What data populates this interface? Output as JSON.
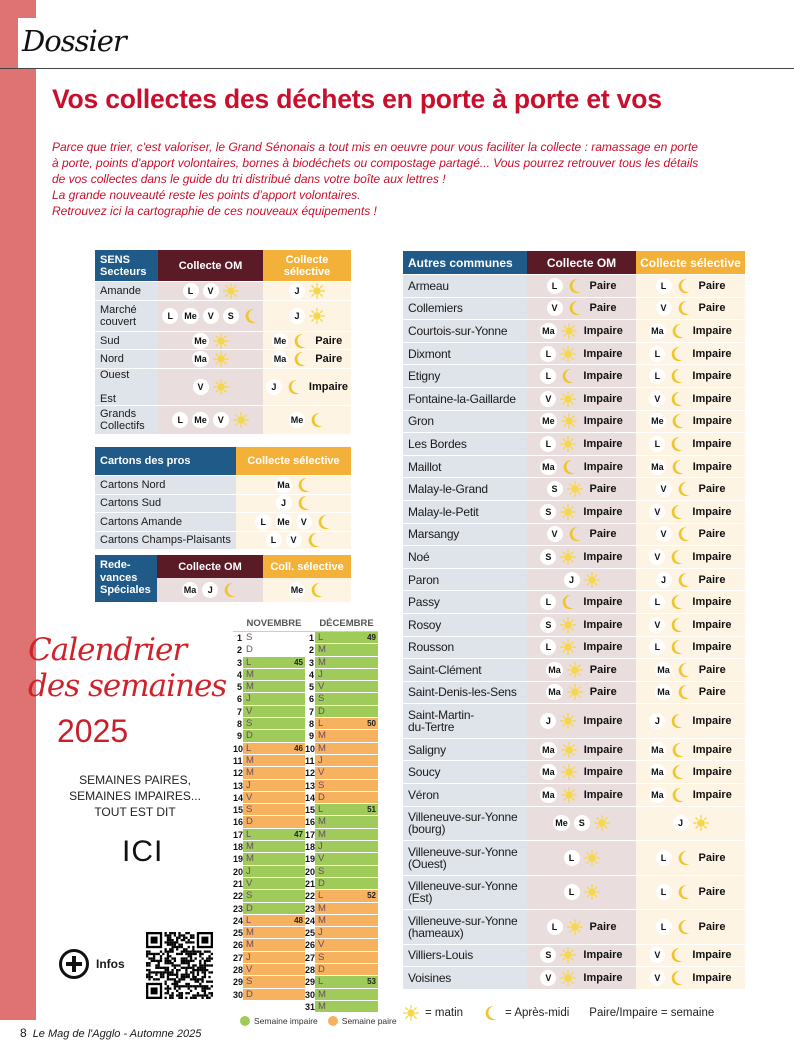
{
  "header": {
    "section": "Dossier",
    "title": "Vos collectes des déchets en porte à porte et vos"
  },
  "intro": [
    " Parce que trier, c'est valoriser, le Grand Sénonais a tout mis en oeuvre pour vous faciliter la collecte : ramassage en porte",
    "à porte, points d'apport volontaires, bornes à biodéchets ou compostage partagé... Vous pourrez retrouver tous les détails",
    "de vos collectes dans le guide du tri distribué dans votre boîte aux lettres !",
    "La grande nouveauté reste les points d'apport volontaires.",
    "Retrouvez ici la cartographie de ces nouveaux équipements !"
  ],
  "colors": {
    "accent": "#c8102e",
    "blue": "#1f5a88",
    "maroon": "#5a1b26",
    "orange": "#f4b13a",
    "semaine_impaire": "#9fcb5b",
    "semaine_paire": "#f6b25e",
    "sun": "#f6d64a",
    "moon": "#f0c52c"
  },
  "sens": {
    "h1": "SENS\nSecteurs",
    "h2": "Collecte OM",
    "h3": "Collecte\nsélective",
    "rows": [
      {
        "label": "Amande",
        "om": {
          "d": [
            "L",
            "V"
          ],
          "t": "sun"
        },
        "sel": {
          "d": [
            "J"
          ],
          "t": "sun"
        }
      },
      {
        "label": "Marché\ncouvert",
        "om": {
          "d": [
            "L",
            "Me",
            "V",
            "S"
          ],
          "t": "moon"
        },
        "sel": {
          "d": [
            "J"
          ],
          "t": "sun"
        }
      },
      {
        "label": "Sud",
        "om": {
          "d": [
            "Me"
          ],
          "t": "sun"
        },
        "sel": {
          "d": [
            "Me"
          ],
          "t": "moon",
          "w": "Paire"
        }
      },
      {
        "label": "Nord",
        "om": {
          "d": [
            "Ma"
          ],
          "t": "sun"
        },
        "sel": {
          "d": [
            "Ma"
          ],
          "t": "moon",
          "w": "Paire"
        }
      },
      {
        "label": "Ouest\n\nEst",
        "om": {
          "d": [
            "V"
          ],
          "t": "sun"
        },
        "sel": {
          "d": [
            "J"
          ],
          "t": "moon",
          "w": "Impaire"
        }
      },
      {
        "label": "Grands\nCollectifs",
        "om": {
          "d": [
            "L",
            "Me",
            "V"
          ],
          "t": "sun"
        },
        "sel": {
          "d": [
            "Me"
          ],
          "t": "moon"
        }
      }
    ]
  },
  "cartons": {
    "h1": "Cartons des pros",
    "h2": "Collecte sélective",
    "rows": [
      {
        "label": "Cartons Nord",
        "sel": {
          "d": [
            "Ma"
          ],
          "t": "moon"
        }
      },
      {
        "label": "Cartons Sud",
        "sel": {
          "d": [
            "J"
          ],
          "t": "moon"
        }
      },
      {
        "label": "Cartons Amande",
        "sel": {
          "d": [
            "L",
            "Me",
            "V"
          ],
          "t": "moon"
        }
      },
      {
        "label": "Cartons Champs-Plaisants",
        "sel": {
          "d": [
            "L",
            "V"
          ],
          "t": "moon"
        }
      }
    ]
  },
  "redevances": {
    "h1": "Rede-\nvances\nSpéciales",
    "h2": "Collecte OM",
    "h3": "Coll. sélective",
    "om": {
      "d": [
        "Ma",
        "J"
      ],
      "t": "moon"
    },
    "sel": {
      "d": [
        "Me"
      ],
      "t": "moon"
    }
  },
  "communes": {
    "h1": "Autres communes",
    "h2": "Collecte OM",
    "h3": "Collecte sélective",
    "rows": [
      {
        "label": "Armeau",
        "om": {
          "d": [
            "L"
          ],
          "t": "moon",
          "w": "Paire"
        },
        "sel": {
          "d": [
            "L"
          ],
          "t": "moon",
          "w": "Paire"
        }
      },
      {
        "label": "Collemiers",
        "om": {
          "d": [
            "V"
          ],
          "t": "moon",
          "w": "Paire"
        },
        "sel": {
          "d": [
            "V"
          ],
          "t": "moon",
          "w": "Paire"
        }
      },
      {
        "label": "Courtois-sur-Yonne",
        "om": {
          "d": [
            "Ma"
          ],
          "t": "sun",
          "w": "Impaire"
        },
        "sel": {
          "d": [
            "Ma"
          ],
          "t": "moon",
          "w": "Impaire"
        }
      },
      {
        "label": "Dixmont",
        "om": {
          "d": [
            "L"
          ],
          "t": "sun",
          "w": "Impaire"
        },
        "sel": {
          "d": [
            "L"
          ],
          "t": "moon",
          "w": "Impaire"
        }
      },
      {
        "label": "Etigny",
        "om": {
          "d": [
            "L"
          ],
          "t": "moon",
          "w": "Impaire"
        },
        "sel": {
          "d": [
            "L"
          ],
          "t": "moon",
          "w": "Impaire"
        }
      },
      {
        "label": "Fontaine-la-Gaillarde",
        "om": {
          "d": [
            "V"
          ],
          "t": "sun",
          "w": "Impaire"
        },
        "sel": {
          "d": [
            "V"
          ],
          "t": "moon",
          "w": "Impaire"
        }
      },
      {
        "label": "Gron",
        "om": {
          "d": [
            "Me"
          ],
          "t": "sun",
          "w": "Impaire"
        },
        "sel": {
          "d": [
            "Me"
          ],
          "t": "moon",
          "w": "Impaire"
        }
      },
      {
        "label": "Les Bordes",
        "om": {
          "d": [
            "L"
          ],
          "t": "sun",
          "w": "Impaire"
        },
        "sel": {
          "d": [
            "L"
          ],
          "t": "moon",
          "w": "Impaire"
        }
      },
      {
        "label": "Maillot",
        "om": {
          "d": [
            "Ma"
          ],
          "t": "moon",
          "w": "Impaire"
        },
        "sel": {
          "d": [
            "Ma"
          ],
          "t": "moon",
          "w": "Impaire"
        }
      },
      {
        "label": "Malay-le-Grand",
        "om": {
          "d": [
            "S"
          ],
          "t": "sun",
          "w": "Paire"
        },
        "sel": {
          "d": [
            "V"
          ],
          "t": "moon",
          "w": "Paire"
        }
      },
      {
        "label": "Malay-le-Petit",
        "om": {
          "d": [
            "S"
          ],
          "t": "sun",
          "w": "Impaire"
        },
        "sel": {
          "d": [
            "V"
          ],
          "t": "moon",
          "w": "Impaire"
        }
      },
      {
        "label": "Marsangy",
        "om": {
          "d": [
            "V"
          ],
          "t": "moon",
          "w": "Paire"
        },
        "sel": {
          "d": [
            "V"
          ],
          "t": "moon",
          "w": "Paire"
        }
      },
      {
        "label": "Noé",
        "om": {
          "d": [
            "S"
          ],
          "t": "sun",
          "w": "Impaire"
        },
        "sel": {
          "d": [
            "V"
          ],
          "t": "moon",
          "w": "Impaire"
        }
      },
      {
        "label": "Paron",
        "om": {
          "d": [
            "J"
          ],
          "t": "sun"
        },
        "sel": {
          "d": [
            "J"
          ],
          "t": "moon",
          "w": "Paire"
        }
      },
      {
        "label": "Passy",
        "om": {
          "d": [
            "L"
          ],
          "t": "moon",
          "w": "Impaire"
        },
        "sel": {
          "d": [
            "L"
          ],
          "t": "moon",
          "w": "Impaire"
        }
      },
      {
        "label": "Rosoy",
        "om": {
          "d": [
            "S"
          ],
          "t": "sun",
          "w": "Impaire"
        },
        "sel": {
          "d": [
            "V"
          ],
          "t": "moon",
          "w": "Impaire"
        }
      },
      {
        "label": "Rousson",
        "om": {
          "d": [
            "L"
          ],
          "t": "sun",
          "w": "Impaire"
        },
        "sel": {
          "d": [
            "L"
          ],
          "t": "moon",
          "w": "Impaire"
        }
      },
      {
        "label": "Saint-Clément",
        "om": {
          "d": [
            "Ma"
          ],
          "t": "sun",
          "w": "Paire"
        },
        "sel": {
          "d": [
            "Ma"
          ],
          "t": "moon",
          "w": "Paire"
        }
      },
      {
        "label": "Saint-Denis-les-Sens",
        "om": {
          "d": [
            "Ma"
          ],
          "t": "sun",
          "w": "Paire"
        },
        "sel": {
          "d": [
            "Ma"
          ],
          "t": "moon",
          "w": "Paire"
        }
      },
      {
        "label": "Saint-Martin-\ndu-Tertre",
        "om": {
          "d": [
            "J"
          ],
          "t": "sun",
          "w": "Impaire"
        },
        "sel": {
          "d": [
            "J"
          ],
          "t": "moon",
          "w": "Impaire"
        }
      },
      {
        "label": "Saligny",
        "om": {
          "d": [
            "Ma"
          ],
          "t": "sun",
          "w": "Impaire"
        },
        "sel": {
          "d": [
            "Ma"
          ],
          "t": "moon",
          "w": "Impaire"
        }
      },
      {
        "label": "Soucy",
        "om": {
          "d": [
            "Ma"
          ],
          "t": "sun",
          "w": "Impaire"
        },
        "sel": {
          "d": [
            "Ma"
          ],
          "t": "moon",
          "w": "Impaire"
        }
      },
      {
        "label": "Véron",
        "om": {
          "d": [
            "Ma"
          ],
          "t": "sun",
          "w": "Impaire"
        },
        "sel": {
          "d": [
            "Ma"
          ],
          "t": "moon",
          "w": "Impaire"
        }
      },
      {
        "label": "Villeneuve-sur-Yonne\n(bourg)",
        "om": {
          "d": [
            "Me",
            "S"
          ],
          "t": "sun"
        },
        "sel": {
          "d": [
            "J"
          ],
          "t": "sun"
        }
      },
      {
        "label": "Villeneuve-sur-Yonne\n(Ouest)",
        "om": {
          "d": [
            "L"
          ],
          "t": "sun"
        },
        "sel": {
          "d": [
            "L"
          ],
          "t": "moon",
          "w": "Paire"
        }
      },
      {
        "label": "Villeneuve-sur-Yonne\n(Est)",
        "om": {
          "d": [
            "L"
          ],
          "t": "sun"
        },
        "sel": {
          "d": [
            "L"
          ],
          "t": "moon",
          "w": "Paire"
        }
      },
      {
        "label": "Villeneuve-sur-Yonne\n(hameaux)",
        "om": {
          "d": [
            "L"
          ],
          "t": "sun",
          "w": "Paire"
        },
        "sel": {
          "d": [
            "L"
          ],
          "t": "moon",
          "w": "Paire"
        }
      },
      {
        "label": "Villiers-Louis",
        "om": {
          "d": [
            "S"
          ],
          "t": "sun",
          "w": "Impaire"
        },
        "sel": {
          "d": [
            "V"
          ],
          "t": "moon",
          "w": "Impaire"
        }
      },
      {
        "label": "Voisines",
        "om": {
          "d": [
            "V"
          ],
          "t": "sun",
          "w": "Impaire"
        },
        "sel": {
          "d": [
            "V"
          ],
          "t": "moon",
          "w": "Impaire"
        }
      }
    ]
  },
  "legend": {
    "sun": "= matin",
    "moon": "= Après-midi",
    "week": "Paire/Impaire = semaine"
  },
  "calendar": {
    "title_line1": "Calendrier",
    "title_line2": "des semaines",
    "year": "2025",
    "subtitle": [
      "SEMAINES PAIRES,",
      "SEMAINES IMPAIRES...",
      "TOUT EST DIT"
    ],
    "ici": "ICI",
    "months": [
      {
        "name": "NOVEMBRE",
        "days": [
          "S",
          "D",
          "L",
          "M",
          "M",
          "J",
          "V",
          "S",
          "D",
          "L",
          "M",
          "M",
          "J",
          "V",
          "S",
          "D",
          "L",
          "M",
          "M",
          "J",
          "V",
          "S",
          "D",
          "L",
          "M",
          "M",
          "J",
          "V",
          "S",
          "D"
        ],
        "weeks": [
          {
            "start": 3,
            "end": 9,
            "num": 45,
            "parity": "impaire"
          },
          {
            "start": 10,
            "end": 16,
            "num": 46,
            "parity": "paire"
          },
          {
            "start": 17,
            "end": 23,
            "num": 47,
            "parity": "impaire"
          },
          {
            "start": 24,
            "end": 30,
            "num": 48,
            "parity": "paire"
          }
        ]
      },
      {
        "name": "DÉCEMBRE",
        "days": [
          "L",
          "M",
          "M",
          "J",
          "V",
          "S",
          "D",
          "L",
          "M",
          "M",
          "J",
          "V",
          "S",
          "D",
          "L",
          "M",
          "M",
          "J",
          "V",
          "S",
          "D",
          "L",
          "M",
          "M",
          "J",
          "V",
          "S",
          "D",
          "L",
          "M",
          "M"
        ],
        "weeks": [
          {
            "start": 1,
            "end": 7,
            "num": 49,
            "parity": "impaire"
          },
          {
            "start": 8,
            "end": 14,
            "num": 50,
            "parity": "paire"
          },
          {
            "start": 15,
            "end": 21,
            "num": 51,
            "parity": "impaire"
          },
          {
            "start": 22,
            "end": 28,
            "num": 52,
            "parity": "paire"
          },
          {
            "start": 29,
            "end": 31,
            "num": 53,
            "parity": "impaire"
          }
        ]
      }
    ],
    "legend_impaire": "Semaine impaire",
    "legend_paire": "Semaine paire"
  },
  "infos": {
    "label": "Infos",
    "icon": "plus-circle-icon"
  },
  "footer": {
    "page": "8",
    "publication": "Le Mag de l'Agglo - Automne 2025"
  }
}
